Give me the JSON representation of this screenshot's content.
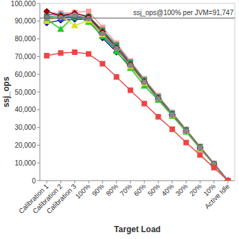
{
  "chart_data": {
    "type": "line",
    "x_label": "Target Load",
    "y_label": "ssj_ops",
    "categories": [
      "Calibration 1",
      "Calibration 2",
      "Calibration 3",
      "100%",
      "90%",
      "80%",
      "70%",
      "60%",
      "50%",
      "40%",
      "30%",
      "20%",
      "10%",
      "Active Idle"
    ],
    "series": [
      {
        "color": "#1f1f8f",
        "marker": "diamond",
        "values": [
          89000,
          90500,
          91000,
          91000,
          80500,
          72500,
          64500,
          55500,
          46000,
          37000,
          28000,
          18500,
          9300,
          0
        ]
      },
      {
        "color": "#3355ff",
        "marker": "circle",
        "values": [
          92000,
          91500,
          92500,
          91800,
          82000,
          74000,
          65500,
          56000,
          46500,
          37500,
          28000,
          18800,
          9400,
          0
        ]
      },
      {
        "color": "#22cc22",
        "marker": "triangle",
        "values": [
          91000,
          85500,
          93000,
          89500,
          81500,
          73000,
          63500,
          53500,
          45500,
          36500,
          27500,
          18000,
          9200,
          0
        ]
      },
      {
        "color": "#dddd22",
        "marker": "triangle",
        "values": [
          90000,
          93000,
          87500,
          90500,
          82500,
          75000,
          64500,
          55000,
          46500,
          37000,
          28000,
          18500,
          9300,
          0
        ]
      },
      {
        "color": "#ff9999",
        "marker": "square",
        "values": [
          95000,
          94500,
          95000,
          95500,
          86500,
          77500,
          67500,
          57500,
          48000,
          38500,
          29000,
          19300,
          9700,
          0
        ]
      },
      {
        "color": "#33cccc",
        "marker": "circle",
        "values": [
          93500,
          94000,
          94000,
          93000,
          84500,
          76000,
          66500,
          56500,
          47000,
          37800,
          28500,
          19000,
          9500,
          0
        ]
      },
      {
        "color": "#cc33cc",
        "marker": "triangle",
        "values": [
          94000,
          93500,
          93000,
          92000,
          83500,
          75500,
          66000,
          56000,
          46800,
          37500,
          28300,
          18900,
          9450,
          0
        ]
      },
      {
        "color": "#229966",
        "marker": "square",
        "values": [
          92500,
          93000,
          92000,
          92500,
          85000,
          76500,
          66800,
          56800,
          47200,
          38000,
          28600,
          19100,
          9550,
          0
        ]
      },
      {
        "color": "#990000",
        "marker": "diamond",
        "values": [
          95500,
          93000,
          94500,
          92500,
          84000,
          75000,
          65500,
          55800,
          46500,
          37300,
          28200,
          18700,
          9400,
          0
        ]
      },
      {
        "color": "#888888",
        "marker": "circle",
        "values": [
          91500,
          92000,
          93500,
          91500,
          83000,
          74500,
          65000,
          55500,
          46200,
          37200,
          28100,
          18600,
          9350,
          0
        ]
      },
      {
        "color": "#ee4444",
        "marker": "square",
        "values": [
          70500,
          72000,
          72500,
          71500,
          66000,
          58500,
          51000,
          43500,
          36000,
          29000,
          21500,
          14500,
          7300,
          0
        ]
      }
    ],
    "annotations": [
      {
        "text": "ssj_ops@100% per JVM=91,747",
        "y": 91747
      }
    ],
    "ylim": [
      0,
      100000
    ],
    "yticks": [
      0,
      {
        "value": 10000,
        "label": "10,000"
      },
      {
        "value": 20000,
        "label": "20,000"
      },
      {
        "value": 30000,
        "label": "30,000"
      },
      {
        "value": 40000,
        "label": "40,000"
      },
      {
        "value": 50000,
        "label": "50,000"
      },
      {
        "value": 60000,
        "label": "60,000"
      },
      {
        "value": 70000,
        "label": "70,000"
      },
      {
        "value": 80000,
        "label": "80,000"
      },
      {
        "value": 90000,
        "label": "90,000"
      },
      {
        "value": 100000,
        "label": "100,000"
      }
    ],
    "grid": false
  }
}
